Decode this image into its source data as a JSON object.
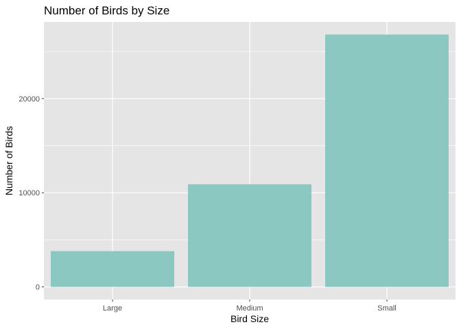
{
  "chart_data": {
    "type": "bar",
    "title": "Number of Birds by Size",
    "xlabel": "Bird Size",
    "ylabel": "Number of Birds",
    "categories": [
      "Large",
      "Medium",
      "Small"
    ],
    "values": [
      3800,
      10900,
      26800
    ],
    "ylim": [
      -1340,
      28140
    ],
    "yticks": [
      0,
      10000,
      20000
    ],
    "ytick_labels": [
      "0",
      "10000",
      "20000"
    ],
    "grid": true,
    "colors": {
      "bar": "#85C6BF",
      "panel": "#E5E5E5",
      "gridline": "#FFFFFF",
      "tick_text": "#4D4D4D",
      "title_text": "#000000"
    }
  }
}
